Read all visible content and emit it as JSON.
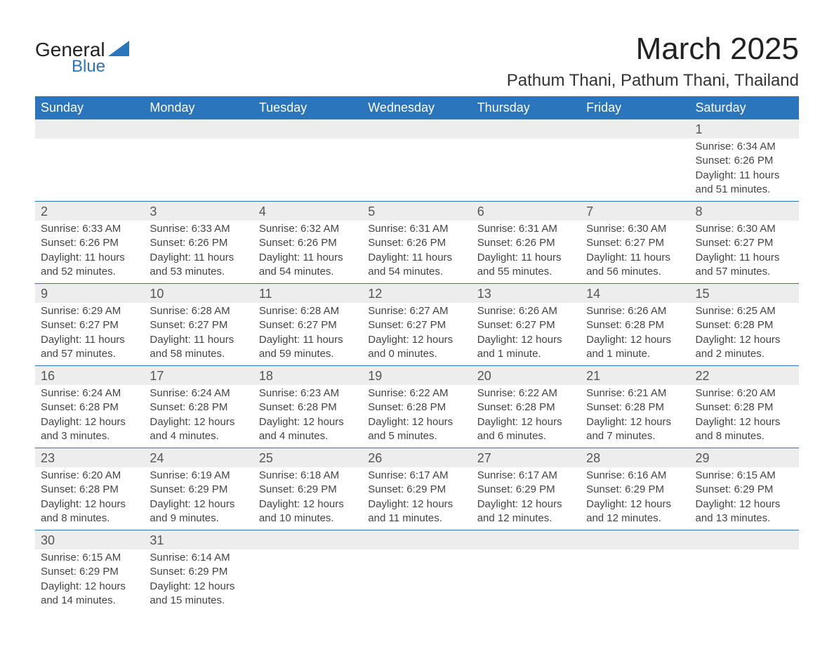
{
  "logo": {
    "text1": "General",
    "text2": "Blue",
    "shape_color": "#2a75bb"
  },
  "title": "March 2025",
  "location": "Pathum Thani, Pathum Thani, Thailand",
  "colors": {
    "header_bg": "#2a75bb",
    "header_text": "#ffffff",
    "daynum_bg": "#ededed",
    "row_border": "#2a75bb",
    "text": "#333333"
  },
  "weekdays": [
    "Sunday",
    "Monday",
    "Tuesday",
    "Wednesday",
    "Thursday",
    "Friday",
    "Saturday"
  ],
  "weeks": [
    [
      null,
      null,
      null,
      null,
      null,
      null,
      {
        "n": "1",
        "sr": "6:34 AM",
        "ss": "6:26 PM",
        "dl": "11 hours and 51 minutes."
      }
    ],
    [
      {
        "n": "2",
        "sr": "6:33 AM",
        "ss": "6:26 PM",
        "dl": "11 hours and 52 minutes."
      },
      {
        "n": "3",
        "sr": "6:33 AM",
        "ss": "6:26 PM",
        "dl": "11 hours and 53 minutes."
      },
      {
        "n": "4",
        "sr": "6:32 AM",
        "ss": "6:26 PM",
        "dl": "11 hours and 54 minutes."
      },
      {
        "n": "5",
        "sr": "6:31 AM",
        "ss": "6:26 PM",
        "dl": "11 hours and 54 minutes."
      },
      {
        "n": "6",
        "sr": "6:31 AM",
        "ss": "6:26 PM",
        "dl": "11 hours and 55 minutes."
      },
      {
        "n": "7",
        "sr": "6:30 AM",
        "ss": "6:27 PM",
        "dl": "11 hours and 56 minutes."
      },
      {
        "n": "8",
        "sr": "6:30 AM",
        "ss": "6:27 PM",
        "dl": "11 hours and 57 minutes."
      }
    ],
    [
      {
        "n": "9",
        "sr": "6:29 AM",
        "ss": "6:27 PM",
        "dl": "11 hours and 57 minutes."
      },
      {
        "n": "10",
        "sr": "6:28 AM",
        "ss": "6:27 PM",
        "dl": "11 hours and 58 minutes."
      },
      {
        "n": "11",
        "sr": "6:28 AM",
        "ss": "6:27 PM",
        "dl": "11 hours and 59 minutes."
      },
      {
        "n": "12",
        "sr": "6:27 AM",
        "ss": "6:27 PM",
        "dl": "12 hours and 0 minutes."
      },
      {
        "n": "13",
        "sr": "6:26 AM",
        "ss": "6:27 PM",
        "dl": "12 hours and 1 minute."
      },
      {
        "n": "14",
        "sr": "6:26 AM",
        "ss": "6:28 PM",
        "dl": "12 hours and 1 minute."
      },
      {
        "n": "15",
        "sr": "6:25 AM",
        "ss": "6:28 PM",
        "dl": "12 hours and 2 minutes."
      }
    ],
    [
      {
        "n": "16",
        "sr": "6:24 AM",
        "ss": "6:28 PM",
        "dl": "12 hours and 3 minutes."
      },
      {
        "n": "17",
        "sr": "6:24 AM",
        "ss": "6:28 PM",
        "dl": "12 hours and 4 minutes."
      },
      {
        "n": "18",
        "sr": "6:23 AM",
        "ss": "6:28 PM",
        "dl": "12 hours and 4 minutes."
      },
      {
        "n": "19",
        "sr": "6:22 AM",
        "ss": "6:28 PM",
        "dl": "12 hours and 5 minutes."
      },
      {
        "n": "20",
        "sr": "6:22 AM",
        "ss": "6:28 PM",
        "dl": "12 hours and 6 minutes."
      },
      {
        "n": "21",
        "sr": "6:21 AM",
        "ss": "6:28 PM",
        "dl": "12 hours and 7 minutes."
      },
      {
        "n": "22",
        "sr": "6:20 AM",
        "ss": "6:28 PM",
        "dl": "12 hours and 8 minutes."
      }
    ],
    [
      {
        "n": "23",
        "sr": "6:20 AM",
        "ss": "6:28 PM",
        "dl": "12 hours and 8 minutes."
      },
      {
        "n": "24",
        "sr": "6:19 AM",
        "ss": "6:29 PM",
        "dl": "12 hours and 9 minutes."
      },
      {
        "n": "25",
        "sr": "6:18 AM",
        "ss": "6:29 PM",
        "dl": "12 hours and 10 minutes."
      },
      {
        "n": "26",
        "sr": "6:17 AM",
        "ss": "6:29 PM",
        "dl": "12 hours and 11 minutes."
      },
      {
        "n": "27",
        "sr": "6:17 AM",
        "ss": "6:29 PM",
        "dl": "12 hours and 12 minutes."
      },
      {
        "n": "28",
        "sr": "6:16 AM",
        "ss": "6:29 PM",
        "dl": "12 hours and 12 minutes."
      },
      {
        "n": "29",
        "sr": "6:15 AM",
        "ss": "6:29 PM",
        "dl": "12 hours and 13 minutes."
      }
    ],
    [
      {
        "n": "30",
        "sr": "6:15 AM",
        "ss": "6:29 PM",
        "dl": "12 hours and 14 minutes."
      },
      {
        "n": "31",
        "sr": "6:14 AM",
        "ss": "6:29 PM",
        "dl": "12 hours and 15 minutes."
      },
      null,
      null,
      null,
      null,
      null
    ]
  ],
  "labels": {
    "sunrise": "Sunrise: ",
    "sunset": "Sunset: ",
    "daylight": "Daylight: "
  }
}
